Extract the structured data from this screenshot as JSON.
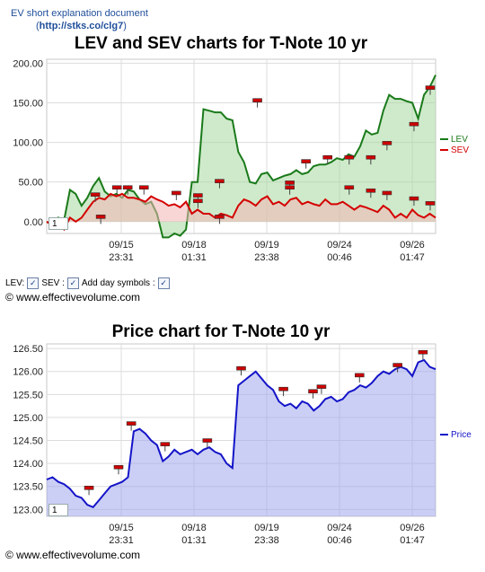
{
  "header": {
    "doc_link": "EV short explanation document",
    "url_prefix": "(",
    "url": "http://stks.co/clg7",
    "url_suffix": ")"
  },
  "chart_data": [
    {
      "type": "line",
      "title": "LEV and SEV charts for T-Note 10 yr",
      "y_ticks": [
        "0.00",
        "50.00",
        "100.00",
        "150.00",
        "200.00"
      ],
      "ylim": [
        -15,
        205
      ],
      "x_ticks": [
        {
          "date": "09/15",
          "time": "23:31"
        },
        {
          "date": "09/18",
          "time": "01:31"
        },
        {
          "date": "09/19",
          "time": "23:38"
        },
        {
          "date": "09/24",
          "time": "00:46"
        },
        {
          "date": "09/26",
          "time": "01:47"
        }
      ],
      "grid": true,
      "legend_placement": "right",
      "zoom_value": "1",
      "series": [
        {
          "name": "LEV",
          "color": "#1a7a1a",
          "values": [
            0,
            -5,
            5,
            2,
            40,
            35,
            20,
            30,
            45,
            55,
            38,
            32,
            35,
            30,
            40,
            38,
            28,
            22,
            25,
            10,
            -20,
            -20,
            -15,
            -18,
            -10,
            50,
            50,
            142,
            140,
            138,
            138,
            130,
            128,
            88,
            75,
            50,
            48,
            60,
            62,
            52,
            55,
            58,
            60,
            65,
            60,
            62,
            70,
            72,
            72,
            75,
            80,
            78,
            85,
            82,
            95,
            115,
            110,
            112,
            140,
            160,
            155,
            155,
            152,
            150,
            130,
            160,
            170,
            185
          ]
        },
        {
          "name": "SEV",
          "color": "#d40000",
          "values": [
            0,
            -5,
            -3,
            -10,
            5,
            0,
            5,
            15,
            25,
            30,
            28,
            35,
            32,
            35,
            30,
            30,
            28,
            25,
            32,
            28,
            25,
            20,
            22,
            18,
            25,
            10,
            15,
            10,
            10,
            5,
            10,
            8,
            5,
            20,
            28,
            25,
            20,
            28,
            32,
            22,
            25,
            20,
            28,
            30,
            22,
            25,
            22,
            20,
            28,
            22,
            22,
            25,
            20,
            15,
            20,
            18,
            15,
            12,
            20,
            15,
            5,
            10,
            5,
            15,
            8,
            5,
            10,
            5
          ]
        }
      ],
      "markers": [
        {
          "x": 9,
          "y": 33
        },
        {
          "x": 10,
          "y": 5
        },
        {
          "x": 13,
          "y": 42
        },
        {
          "x": 15,
          "y": 42
        },
        {
          "x": 18,
          "y": 42
        },
        {
          "x": 24,
          "y": 35
        },
        {
          "x": 28,
          "y": 32
        },
        {
          "x": 28,
          "y": 25
        },
        {
          "x": 32,
          "y": 50
        },
        {
          "x": 32,
          "y": 5
        },
        {
          "x": 39,
          "y": 152
        },
        {
          "x": 45,
          "y": 48
        },
        {
          "x": 45,
          "y": 42
        },
        {
          "x": 48,
          "y": 75
        },
        {
          "x": 52,
          "y": 80
        },
        {
          "x": 56,
          "y": 80
        },
        {
          "x": 56,
          "y": 42
        },
        {
          "x": 60,
          "y": 80
        },
        {
          "x": 60,
          "y": 38
        },
        {
          "x": 63,
          "y": 98
        },
        {
          "x": 63,
          "y": 35
        },
        {
          "x": 68,
          "y": 122
        },
        {
          "x": 68,
          "y": 28
        },
        {
          "x": 71,
          "y": 168
        },
        {
          "x": 71,
          "y": 22
        }
      ]
    },
    {
      "type": "line",
      "title": "Price chart for T-Note 10 yr",
      "y_ticks": [
        "123.00",
        "123.50",
        "124.00",
        "124.50",
        "125.00",
        "125.50",
        "126.00",
        "126.50"
      ],
      "ylim": [
        122.85,
        126.6
      ],
      "x_ticks": [
        {
          "date": "09/15",
          "time": "23:31"
        },
        {
          "date": "09/18",
          "time": "01:31"
        },
        {
          "date": "09/19",
          "time": "23:38"
        },
        {
          "date": "09/24",
          "time": "00:46"
        },
        {
          "date": "09/26",
          "time": "01:47"
        }
      ],
      "grid": true,
      "legend_placement": "right",
      "zoom_value": "1",
      "series": [
        {
          "name": "Price",
          "color": "#1414c8",
          "values": [
            123.65,
            123.7,
            123.6,
            123.55,
            123.45,
            123.3,
            123.25,
            123.1,
            123.05,
            123.2,
            123.35,
            123.5,
            123.55,
            123.6,
            123.7,
            124.7,
            124.75,
            124.65,
            124.5,
            124.4,
            124.05,
            124.15,
            124.3,
            124.2,
            124.25,
            124.3,
            124.2,
            124.3,
            124.35,
            124.25,
            124.2,
            124.0,
            123.9,
            125.7,
            125.8,
            125.9,
            126.0,
            125.85,
            125.7,
            125.6,
            125.35,
            125.25,
            125.3,
            125.2,
            125.35,
            125.3,
            125.15,
            125.25,
            125.4,
            125.45,
            125.35,
            125.4,
            125.55,
            125.6,
            125.7,
            125.65,
            125.75,
            125.9,
            126.0,
            125.95,
            126.05,
            126.1,
            126.05,
            125.9,
            126.2,
            126.25,
            126.1,
            126.05
          ]
        }
      ],
      "markers": [
        {
          "x": 10,
          "y": 123.45
        },
        {
          "x": 17,
          "y": 123.9
        },
        {
          "x": 20,
          "y": 124.85
        },
        {
          "x": 28,
          "y": 124.4
        },
        {
          "x": 38,
          "y": 124.48
        },
        {
          "x": 46,
          "y": 126.05
        },
        {
          "x": 56,
          "y": 125.6
        },
        {
          "x": 63,
          "y": 125.55
        },
        {
          "x": 65,
          "y": 125.65
        },
        {
          "x": 74,
          "y": 125.9
        },
        {
          "x": 83,
          "y": 126.12
        },
        {
          "x": 89,
          "y": 126.4
        }
      ]
    }
  ],
  "controls": {
    "lev_label": "LEV:",
    "sev_label": "SEV :",
    "day_symbols_label": "Add day symbols :",
    "check_mark": "✓"
  },
  "copyright": {
    "top": "© www.effectivevolume.com",
    "bottom": "© www.effectivevolume.com"
  }
}
